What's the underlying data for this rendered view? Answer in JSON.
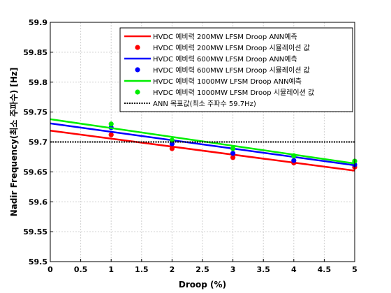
{
  "chart_data": {
    "type": "line",
    "xlabel": "Droop (%)",
    "ylabel": "Nadir Frequency(최소 주파수) [Hz]",
    "xlim": [
      0,
      5
    ],
    "ylim": [
      59.5,
      59.9
    ],
    "xticks": [
      "0",
      "0.5",
      "1",
      "1.5",
      "2",
      "2.5",
      "3",
      "3.5",
      "4",
      "4.5",
      "5"
    ],
    "yticks": [
      "59.5",
      "59.55",
      "59.6",
      "59.65",
      "59.7",
      "59.75",
      "59.8",
      "59.85",
      "59.9"
    ],
    "grid": true,
    "legend_position": "top-right",
    "series": [
      {
        "name": "HVDC 예비력 200MW LFSM Droop ANN예측",
        "kind": "line",
        "color": "#ff0000",
        "x": [
          0,
          5
        ],
        "y": [
          59.719,
          59.652
        ]
      },
      {
        "name": "HVDC 예비력 200MW LFSM Droop 시뮬레이션 값",
        "kind": "scatter",
        "color": "#ff0000",
        "x": [
          1,
          2,
          3,
          4,
          5
        ],
        "y": [
          59.712,
          59.689,
          59.674,
          59.665,
          59.658
        ]
      },
      {
        "name": "HVDC 예비력 600MW LFSM Droop ANN예측",
        "kind": "line",
        "color": "#0000ff",
        "x": [
          0,
          5
        ],
        "y": [
          59.731,
          59.661
        ]
      },
      {
        "name": "HVDC 예비력 600MW LFSM Droop 시뮬레이션 값",
        "kind": "scatter",
        "color": "#0000ff",
        "x": [
          1,
          2,
          3,
          4,
          5
        ],
        "y": [
          59.724,
          59.697,
          59.681,
          59.669,
          59.662
        ]
      },
      {
        "name": "HVDC 예비력 1000MW LFSM Droop ANN예측",
        "kind": "line",
        "color": "#00ee00",
        "x": [
          0,
          5
        ],
        "y": [
          59.738,
          59.664
        ]
      },
      {
        "name": "HVDC 예비력 1000MW LFSM Droop 시뮬레이션 값",
        "kind": "scatter",
        "color": "#00ee00",
        "x": [
          1,
          2,
          3,
          4,
          5
        ],
        "y": [
          59.73,
          59.703,
          59.689,
          59.677,
          59.668
        ]
      },
      {
        "name": "ANN 목표값(최소 주파수 59.7Hz)",
        "kind": "dotted",
        "color": "#000000",
        "x": [
          0,
          5
        ],
        "y": [
          59.7,
          59.7
        ]
      }
    ]
  }
}
